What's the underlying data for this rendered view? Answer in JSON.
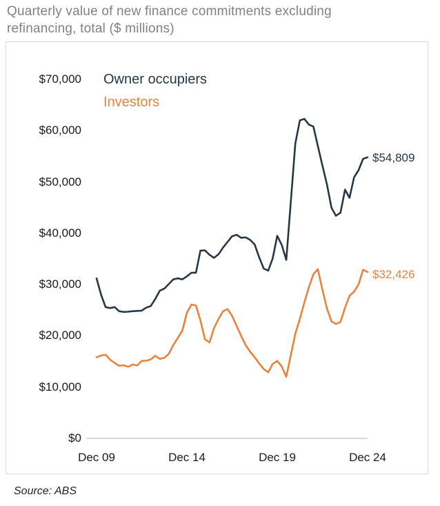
{
  "title": "Quarterly value of new finance commitments excluding refinancing, total ($ millions)",
  "source_note": "Source: ABS",
  "colors": {
    "owner_occupiers": "#253746",
    "investors": "#e8823d",
    "title_gray": "#808184",
    "axis_gray": "#d9d9d9",
    "tick_text": "#1a1a1a"
  },
  "legend": {
    "owner_occupiers": "Owner occupiers",
    "investors": "Investors"
  },
  "end_labels": {
    "owner_occupiers": "$54,809",
    "investors": "$32,426"
  },
  "y_tick_labels": [
    "$70,000",
    "$60,000",
    "$50,000",
    "$40,000",
    "$30,000",
    "$20,000",
    "$10,000",
    "$0"
  ],
  "x_tick_labels": [
    "Dec 09",
    "Dec 14",
    "Dec 19",
    "Dec 24"
  ],
  "chart_data": {
    "type": "line",
    "title": "Quarterly value of new finance commitments excluding refinancing, total ($ millions)",
    "x_frequency": "quarterly",
    "x_start": "Dec 2009",
    "x_end": "Dec 2024",
    "x_axis_ticks": [
      "Dec 09",
      "Dec 14",
      "Dec 19",
      "Dec 24"
    ],
    "ylim": [
      0,
      70000
    ],
    "y_axis_ticks": [
      0,
      10000,
      20000,
      30000,
      40000,
      50000,
      60000,
      70000
    ],
    "grid": false,
    "legend_position": "top-left-inside",
    "series": [
      {
        "id": "owner",
        "name": "Owner occupiers",
        "color": "#253746",
        "last_value_label": "$54,809",
        "values": [
          31200,
          28000,
          25600,
          25400,
          25600,
          24800,
          24650,
          24700,
          24800,
          24850,
          24900,
          25500,
          25800,
          27200,
          28800,
          29200,
          30100,
          31000,
          31200,
          31000,
          31600,
          32300,
          32300,
          36600,
          36650,
          35800,
          35200,
          35900,
          37200,
          38300,
          39400,
          39700,
          39100,
          39200,
          38700,
          37800,
          35300,
          33100,
          32700,
          35100,
          39500,
          37700,
          34800,
          46000,
          57500,
          62000,
          62300,
          61200,
          60800,
          57000,
          53200,
          49500,
          45000,
          43400,
          44000,
          48500,
          46900,
          50900,
          52300,
          54500,
          54809
        ]
      },
      {
        "id": "investor",
        "name": "Investors",
        "color": "#e8823d",
        "last_value_label": "$32,426",
        "values": [
          15800,
          16150,
          16300,
          15350,
          14700,
          14150,
          14250,
          13950,
          14400,
          14200,
          15100,
          15150,
          15400,
          16100,
          15500,
          15700,
          16500,
          18200,
          19600,
          21000,
          24500,
          26100,
          25900,
          23000,
          19300,
          18700,
          21500,
          23300,
          24800,
          25200,
          23900,
          21900,
          20000,
          18200,
          16900,
          15800,
          14600,
          13500,
          12900,
          14500,
          15100,
          14000,
          12000,
          16200,
          20400,
          23300,
          26500,
          29500,
          32000,
          33000,
          29000,
          25300,
          22800,
          22300,
          22700,
          25500,
          27800,
          28600,
          30000,
          32900,
          32426
        ]
      }
    ]
  }
}
